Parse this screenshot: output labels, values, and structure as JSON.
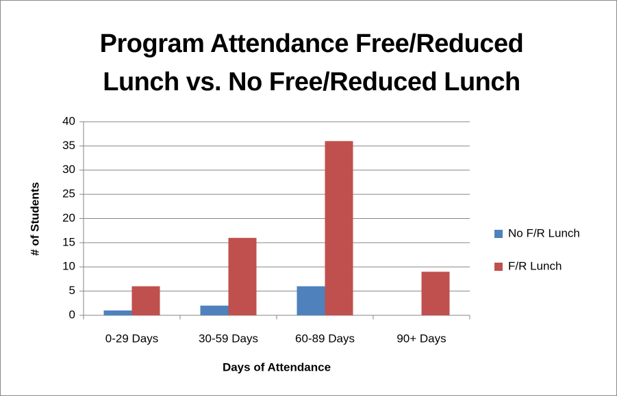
{
  "chart_data": {
    "type": "bar",
    "title": "Program Attendance Free/Reduced Lunch vs. No Free/Reduced Lunch",
    "x_label": "Days of Attendance",
    "y_label": "# of Students",
    "categories": [
      "0-29 Days",
      "30-59 Days",
      "60-89 Days",
      "90+ Days"
    ],
    "series": [
      {
        "name": "No F/R Lunch",
        "color": "#4f81bd",
        "values": [
          1,
          2,
          6,
          0
        ]
      },
      {
        "name": "F/R Lunch",
        "color": "#c0504d",
        "values": [
          6,
          16,
          36,
          9
        ]
      }
    ],
    "ylim": [
      0,
      40
    ],
    "yticks": [
      0,
      5,
      10,
      15,
      20,
      25,
      30,
      35,
      40
    ],
    "grid": true,
    "legend": "right"
  }
}
